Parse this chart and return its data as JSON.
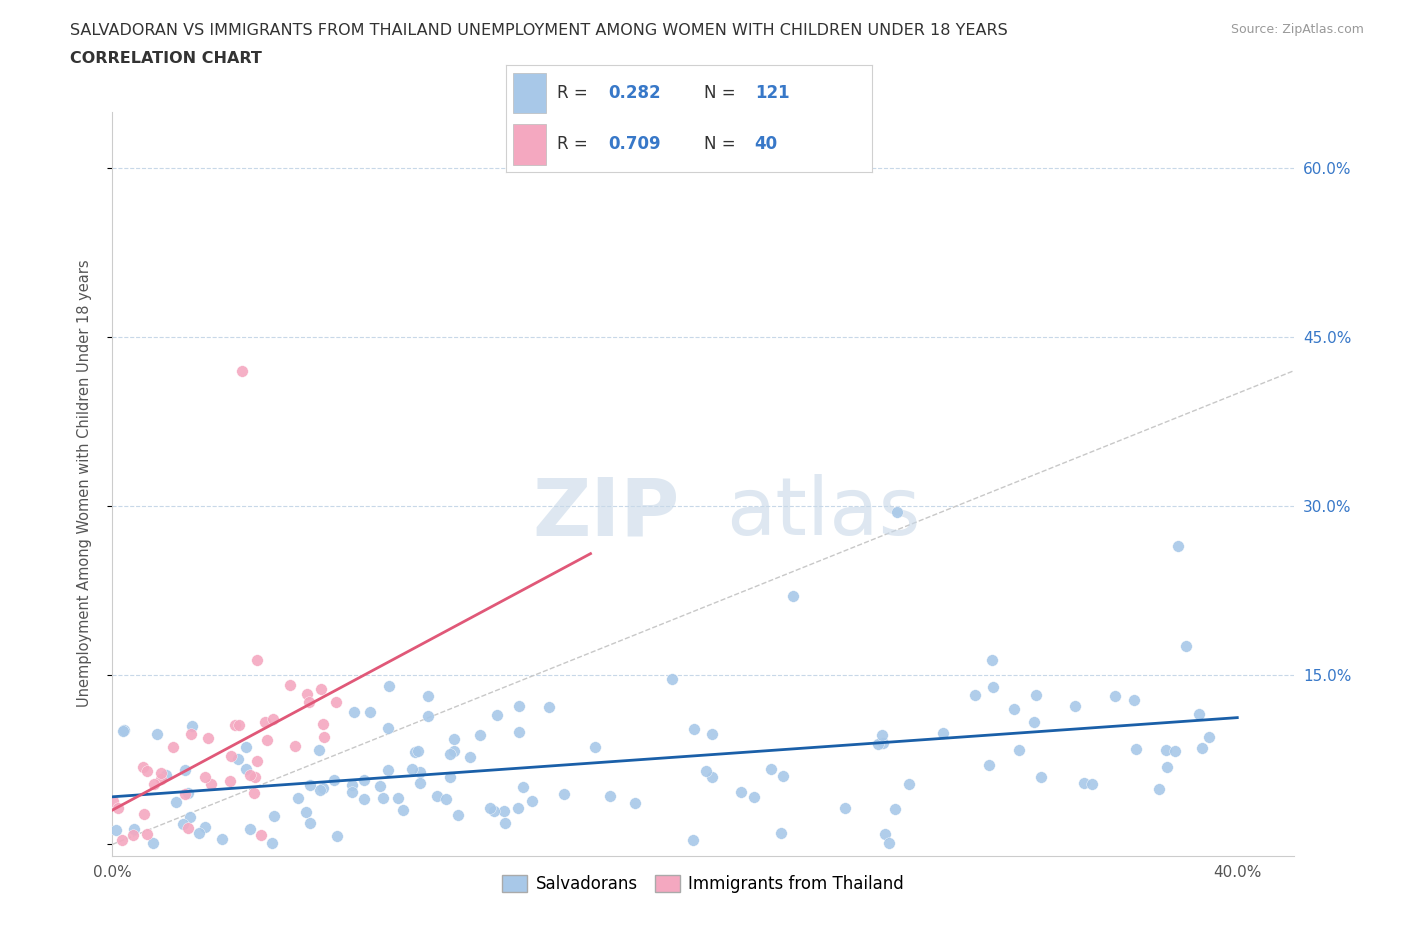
{
  "title_line1": "SALVADORAN VS IMMIGRANTS FROM THAILAND UNEMPLOYMENT AMONG WOMEN WITH CHILDREN UNDER 18 YEARS",
  "title_line2": "CORRELATION CHART",
  "source_text": "Source: ZipAtlas.com",
  "ylabel": "Unemployment Among Women with Children Under 18 years",
  "xlim": [
    0.0,
    0.42
  ],
  "ylim": [
    -0.01,
    0.65
  ],
  "R_salvadoran": 0.282,
  "N_salvadoran": 121,
  "R_thailand": 0.709,
  "N_thailand": 40,
  "color_salvadoran": "#a8c8e8",
  "color_thailand": "#f4a8c0",
  "color_trend_salvadoran": "#1a5fa8",
  "color_trend_thailand": "#e05878",
  "color_diagonal": "#c8c8c8",
  "watermark_zip": "ZIP",
  "watermark_atlas": "atlas"
}
